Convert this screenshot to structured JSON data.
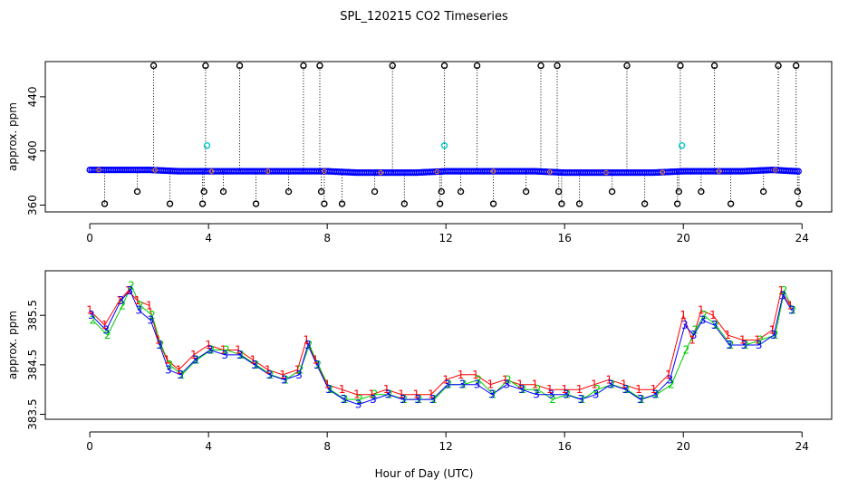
{
  "title": "SPL_120215  CO2 Timeseries",
  "xlabel": "Hour of Day (UTC)",
  "colors": {
    "axis": "#000000",
    "upper_points": "#0000ff",
    "upper_outlier": "#000000",
    "upper_cyan": "#00cccc",
    "upper_orange": "#ff8800",
    "series1": "#ff0000",
    "series2": "#00cc00",
    "series3": "#0000ff"
  },
  "chart_data": [
    {
      "type": "scatter",
      "title": "SPL_120215  CO2 Timeseries",
      "xlabel": "",
      "ylabel": "approx. ppm",
      "xlim": [
        -1.5,
        25
      ],
      "ylim": [
        355,
        466
      ],
      "xticks": [
        0,
        4,
        8,
        12,
        16,
        20,
        24
      ],
      "yticks": [
        360,
        400,
        440
      ],
      "baseline_profile": {
        "x": [
          0,
          1,
          2,
          3,
          4,
          5,
          6,
          7,
          8,
          9,
          10,
          11,
          12,
          13,
          14,
          15,
          16,
          17,
          18,
          19,
          20,
          21,
          22,
          23,
          23.8
        ],
        "y": [
          386,
          386,
          386,
          385,
          385,
          385,
          385,
          385,
          385,
          384,
          384,
          384,
          385,
          385,
          385,
          385,
          384,
          384,
          384,
          384,
          385,
          385,
          385,
          386,
          385
        ]
      },
      "high_spikes_x": [
        2.15,
        3.9,
        5.05,
        7.2,
        7.75,
        10.2,
        11.95,
        13.05,
        15.2,
        15.75,
        18.1,
        19.9,
        21.05,
        23.2,
        23.8
      ],
      "high_spike_value": 463,
      "low_spikes_x": [
        0.5,
        2.7,
        3.8,
        5.6,
        7.9,
        8.5,
        10.6,
        11.8,
        13.6,
        15.9,
        16.5,
        18.7,
        19.8,
        21.6,
        23.9
      ],
      "low_spike_value": 361,
      "mid_low_spikes_x": [
        1.6,
        3.85,
        4.5,
        6.7,
        7.8,
        9.6,
        11.85,
        12.5,
        14.7,
        15.8,
        17.6,
        19.85,
        20.6,
        22.7,
        23.85
      ],
      "mid_low_spike_value": 370,
      "cyan_points": {
        "x": [
          3.95,
          11.95,
          19.95
        ],
        "y": [
          404,
          404,
          404
        ]
      }
    },
    {
      "type": "line",
      "title": "",
      "xlabel": "Hour of Day (UTC)",
      "ylabel": "approx. ppm",
      "xlim": [
        -1.5,
        25
      ],
      "ylim": [
        383.4,
        386.4
      ],
      "xticks": [
        0,
        4,
        8,
        12,
        16,
        20,
        24
      ],
      "yticks": [
        383.5,
        384.5,
        385.5
      ],
      "ytick_labels": [
        "383.5",
        "384.5",
        "385.5"
      ],
      "series_labels": [
        "1",
        "2",
        "3"
      ],
      "series": [
        {
          "name": "1",
          "x": [
            0,
            0.5,
            1,
            1.3,
            1.6,
            2,
            2.3,
            2.6,
            3,
            3.5,
            4,
            4.5,
            5,
            5.5,
            6,
            6.5,
            7,
            7.3,
            7.6,
            8,
            8.5,
            9,
            9.5,
            10,
            10.5,
            11,
            11.5,
            12,
            12.5,
            13,
            13.5,
            14,
            14.5,
            15,
            15.5,
            16,
            16.5,
            17,
            17.5,
            18,
            18.5,
            19,
            19.5,
            20,
            20.3,
            20.6,
            21,
            21.5,
            22,
            22.5,
            23,
            23.3,
            23.6
          ],
          "y": [
            385.6,
            385.3,
            385.8,
            386.0,
            385.8,
            385.7,
            385.0,
            384.6,
            384.4,
            384.7,
            384.9,
            384.8,
            384.8,
            384.6,
            384.4,
            384.3,
            384.4,
            385.0,
            384.6,
            384.1,
            384.0,
            383.9,
            383.9,
            384.0,
            383.9,
            383.9,
            383.9,
            384.2,
            384.3,
            384.3,
            384.1,
            384.2,
            384.1,
            384.1,
            384.0,
            384.0,
            384.0,
            384.1,
            384.2,
            384.1,
            384.0,
            384.0,
            384.3,
            385.5,
            385.0,
            385.6,
            385.5,
            385.1,
            385.0,
            385.0,
            385.2,
            386.0,
            385.7
          ]
        },
        {
          "name": "2",
          "x": [
            0.1,
            0.6,
            1.1,
            1.4,
            1.7,
            2.1,
            2.4,
            2.7,
            3.1,
            3.6,
            4.1,
            4.6,
            5.1,
            5.6,
            6.1,
            6.6,
            7.1,
            7.4,
            7.7,
            8.1,
            8.6,
            9.1,
            9.6,
            10.1,
            10.6,
            11.1,
            11.6,
            12.1,
            12.6,
            13.1,
            13.6,
            14.1,
            14.6,
            15.1,
            15.6,
            16.1,
            16.6,
            17.1,
            17.6,
            18.1,
            18.6,
            19.1,
            19.6,
            20.1,
            20.4,
            20.7,
            21.1,
            21.6,
            22.1,
            22.6,
            23.1,
            23.4,
            23.7
          ],
          "y": [
            385.4,
            385.1,
            385.7,
            386.1,
            385.7,
            385.5,
            384.9,
            384.5,
            384.3,
            384.6,
            384.8,
            384.8,
            384.7,
            384.5,
            384.3,
            384.2,
            384.4,
            384.9,
            384.5,
            384.0,
            383.8,
            383.8,
            383.9,
            383.9,
            383.8,
            383.8,
            383.8,
            384.1,
            384.1,
            384.2,
            383.9,
            384.2,
            384.0,
            384.0,
            383.8,
            383.9,
            383.8,
            384.0,
            384.1,
            384.0,
            383.8,
            383.9,
            384.1,
            384.8,
            385.2,
            385.5,
            385.3,
            384.9,
            384.9,
            385.0,
            385.1,
            386.0,
            385.6
          ]
        },
        {
          "name": "3",
          "x": [
            0.05,
            0.55,
            1.05,
            1.35,
            1.65,
            2.05,
            2.35,
            2.65,
            3.05,
            3.55,
            4.05,
            4.55,
            5.05,
            5.55,
            6.05,
            6.55,
            7.05,
            7.35,
            7.65,
            8.05,
            8.55,
            9.05,
            9.55,
            10.05,
            10.55,
            11.05,
            11.55,
            12.05,
            12.55,
            13.05,
            13.55,
            14.05,
            14.55,
            15.05,
            15.55,
            16.05,
            16.55,
            17.05,
            17.55,
            18.05,
            18.55,
            19.05,
            19.55,
            20.05,
            20.35,
            20.65,
            21.05,
            21.55,
            22.05,
            22.55,
            23.05,
            23.35,
            23.65
          ],
          "y": [
            385.5,
            385.2,
            385.8,
            386.0,
            385.6,
            385.4,
            384.9,
            384.4,
            384.3,
            384.6,
            384.8,
            384.7,
            384.7,
            384.5,
            384.3,
            384.2,
            384.3,
            384.9,
            384.5,
            384.0,
            383.8,
            383.7,
            383.8,
            383.9,
            383.8,
            383.8,
            383.8,
            384.1,
            384.1,
            384.1,
            383.9,
            384.1,
            384.0,
            383.9,
            383.9,
            383.9,
            383.8,
            383.9,
            384.1,
            384.0,
            383.8,
            383.9,
            384.2,
            385.3,
            385.1,
            385.4,
            385.3,
            384.9,
            384.9,
            384.9,
            385.1,
            385.9,
            385.6
          ]
        }
      ]
    }
  ]
}
